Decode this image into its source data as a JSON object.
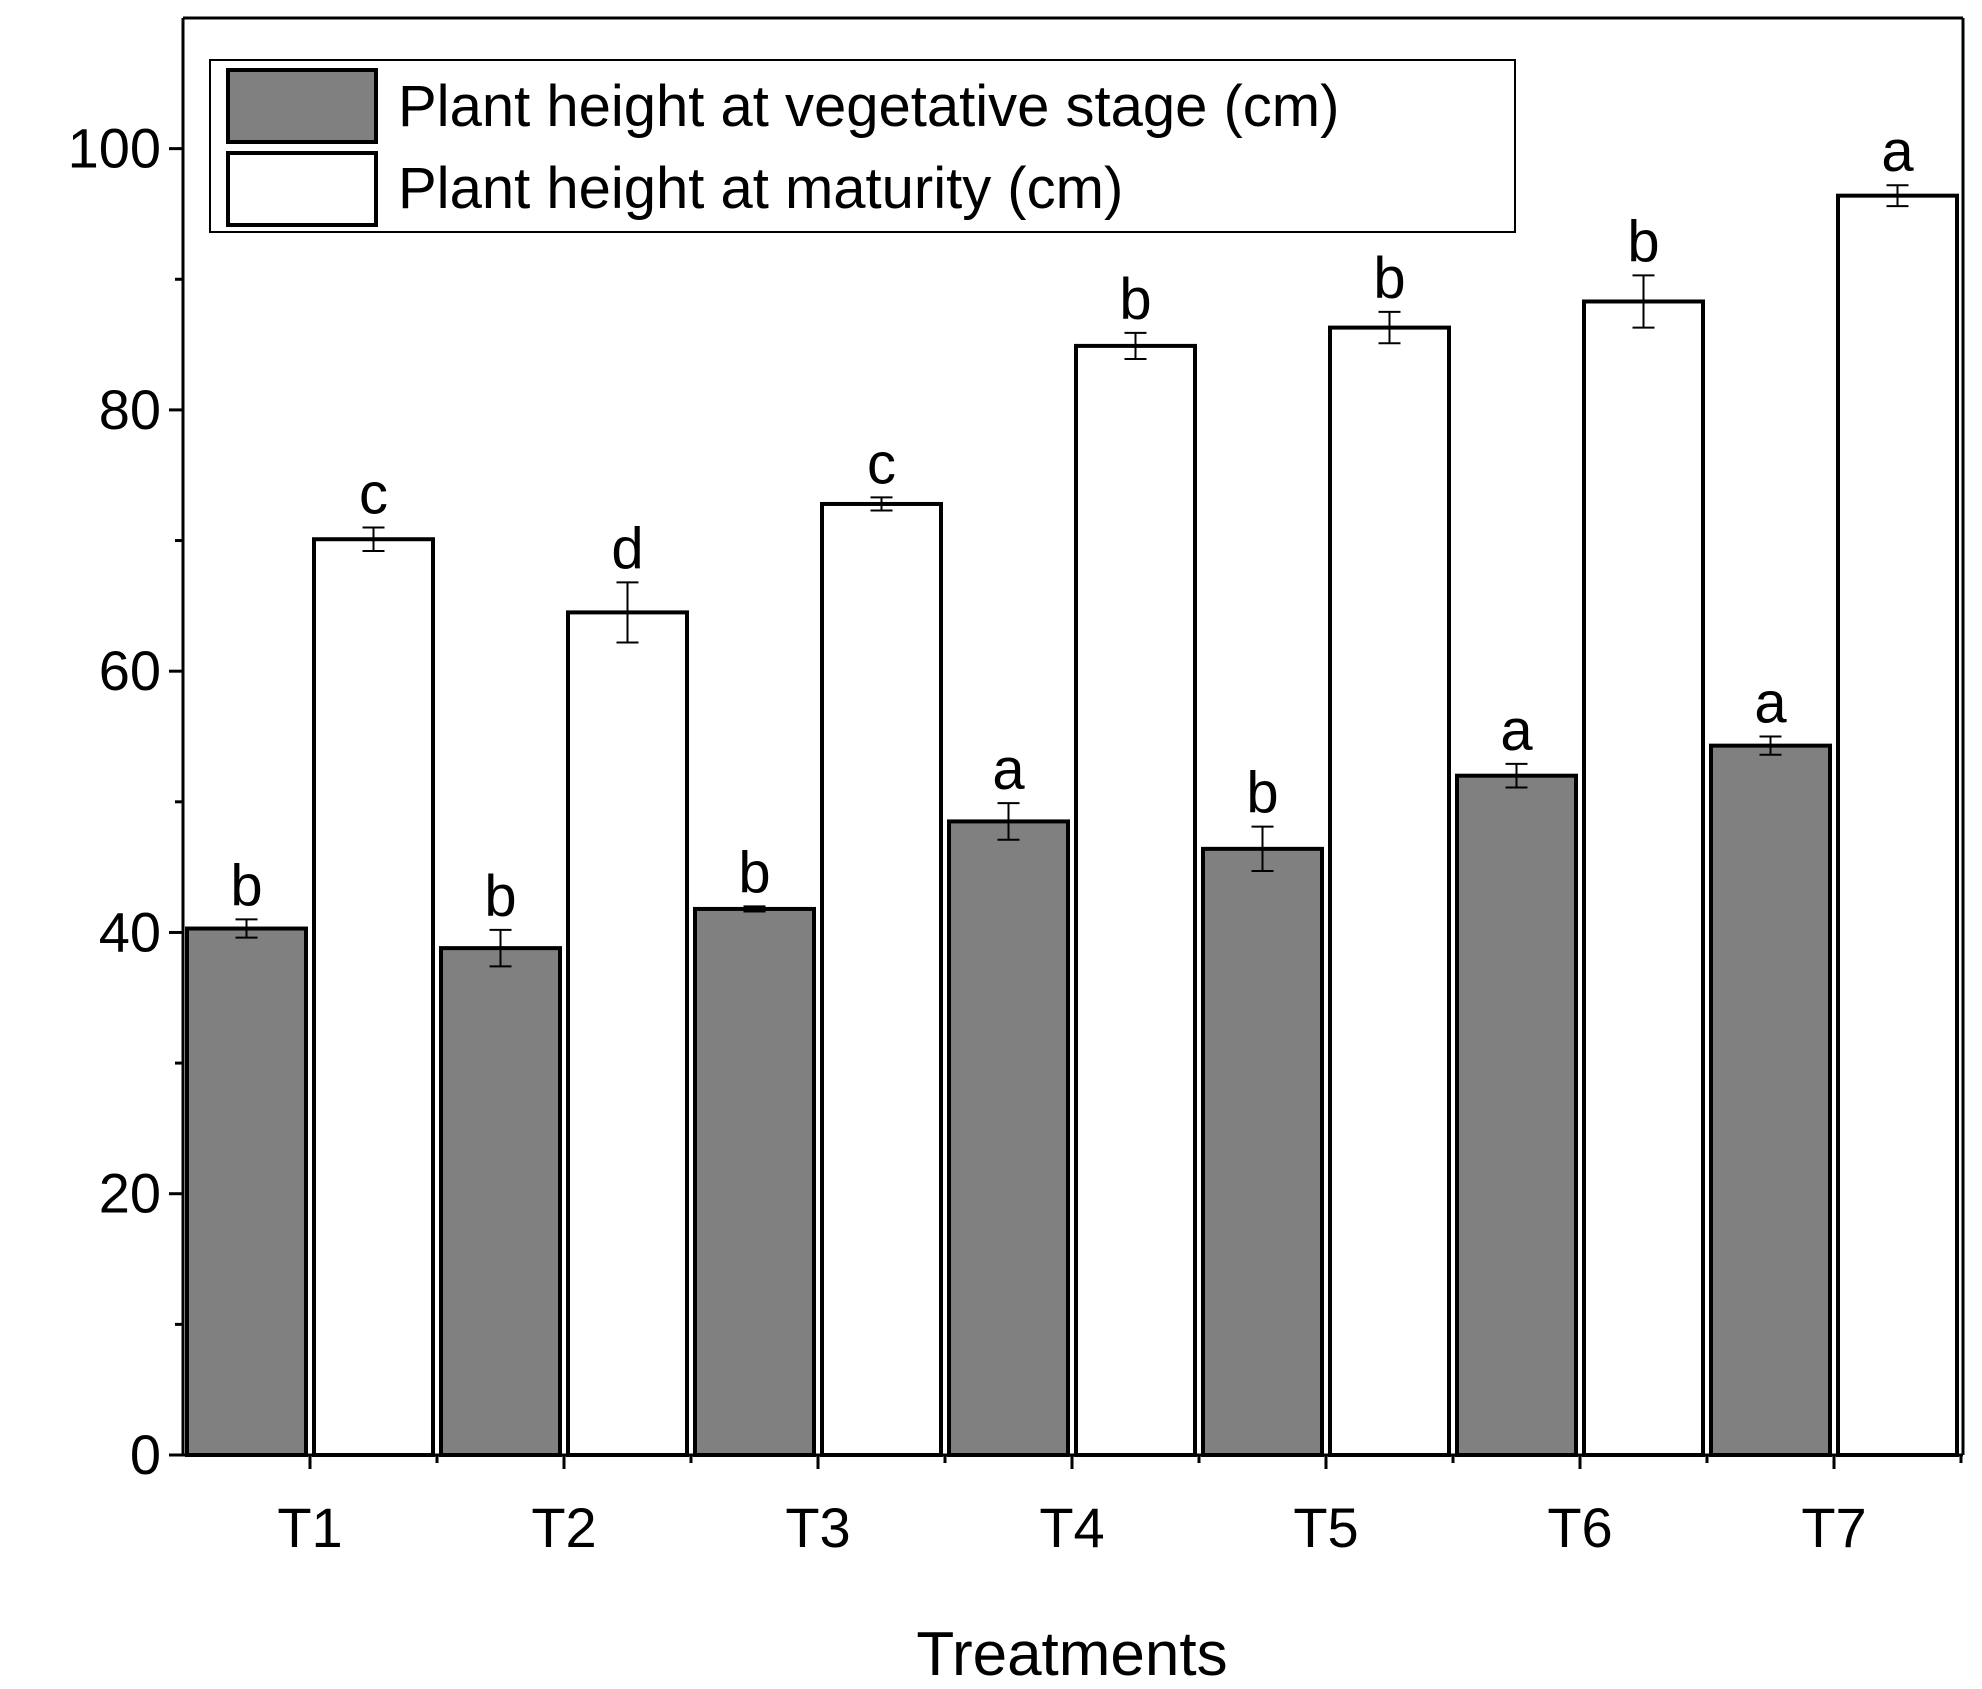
{
  "chart_data": {
    "type": "bar",
    "title": "",
    "xlabel": "Treatments",
    "ylabel": "",
    "ylim": [
      0,
      110
    ],
    "yticks": [
      0,
      20,
      40,
      60,
      80,
      100
    ],
    "categories": [
      "T1",
      "T2",
      "T3",
      "T4",
      "T5",
      "T6",
      "T7"
    ],
    "series": [
      {
        "name": "Plant height at vegetative stage (cm)",
        "color": "#808080",
        "values": [
          40.3,
          38.8,
          41.8,
          48.5,
          46.4,
          52.0,
          54.3
        ],
        "errors": [
          0.7,
          1.4,
          0.2,
          1.4,
          1.7,
          0.9,
          0.7
        ],
        "letters": [
          "b",
          "b",
          "b",
          "a",
          "b",
          "a",
          "a"
        ]
      },
      {
        "name": "Plant height at maturity (cm)",
        "color": "#ffffff",
        "values": [
          70.1,
          64.5,
          72.8,
          84.9,
          86.3,
          88.3,
          96.4
        ],
        "errors": [
          0.9,
          2.3,
          0.5,
          1.0,
          1.2,
          2.0,
          0.8
        ],
        "letters": [
          "c",
          "d",
          "c",
          "b",
          "b",
          "b",
          "a"
        ]
      }
    ],
    "legend_position": "top-left"
  }
}
